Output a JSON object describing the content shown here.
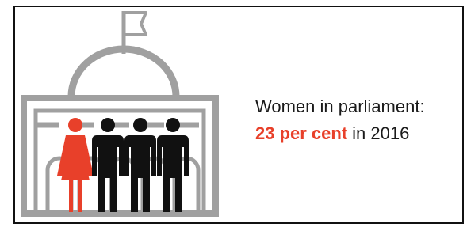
{
  "heading": "Women in parliament:",
  "highlight": "23 per cent",
  "rest": "in 2016"
}
